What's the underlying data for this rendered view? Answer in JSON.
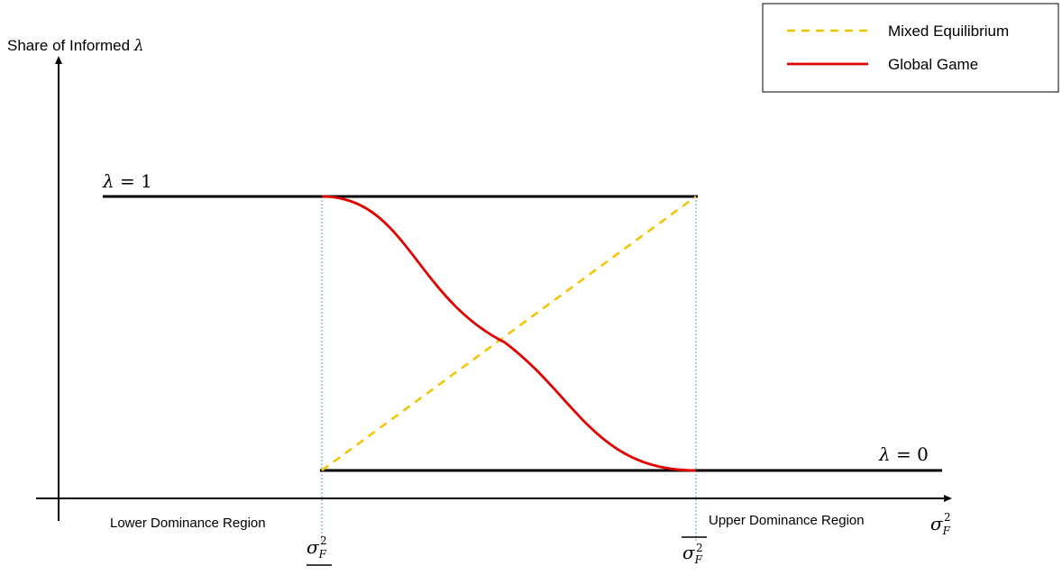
{
  "diagram": {
    "y_axis_label": "Share of Informed",
    "y_axis_symbol": "λ",
    "x_axis_symbol": "σ",
    "x_axis_sub": "F",
    "x_axis_sup": "2",
    "lambda_one_label": {
      "symbol": "λ",
      "rest": " = 1"
    },
    "lambda_zero_label": {
      "symbol": "λ",
      "rest": " = 0"
    },
    "region_lower": "Lower Dominance Region",
    "region_upper": "Upper Dominance Region",
    "threshold_low": {
      "symbol": "σ",
      "sub": "F",
      "sup": "2"
    },
    "threshold_high": {
      "symbol": "σ",
      "sub": "F",
      "sup": "2"
    }
  },
  "legend": {
    "entries": [
      {
        "label": "Mixed Equilibrium",
        "color": "#f5c200",
        "style": "dashed"
      },
      {
        "label": "Global Game",
        "color": "#e00000",
        "style": "solid"
      }
    ]
  },
  "colors": {
    "axis": "#000000",
    "guide_lines": "#5b9bd5",
    "mixed_equilibrium": "#f5c200",
    "global_game": "#e00000"
  }
}
